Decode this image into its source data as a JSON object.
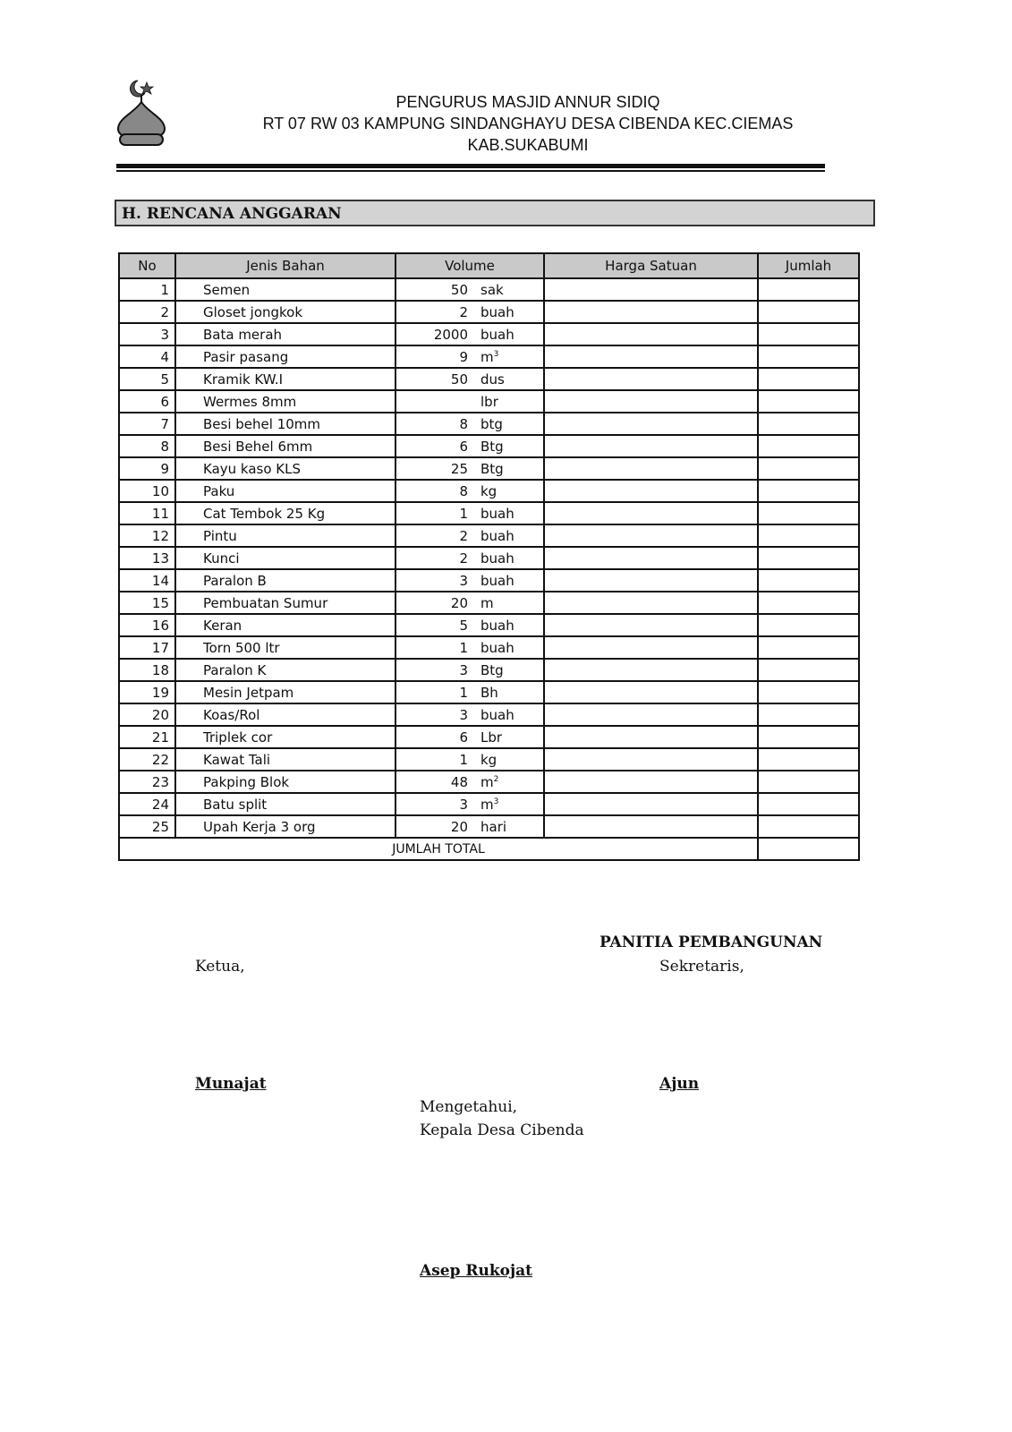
{
  "header": {
    "line1": "PENGURUS MASJID ANNUR SIDIQ",
    "line2": "RT 07 RW 03 KAMPUNG SINDANGHAYU DESA CIBENDA KEC.CIEMAS",
    "line3": "KAB.SUKABUMI"
  },
  "section_title": "H. RENCANA ANGGARAN",
  "table": {
    "columns": [
      "No",
      "Jenis Bahan",
      "Volume",
      "Harga Satuan",
      "Jumlah"
    ],
    "rows": [
      {
        "no": "1",
        "item": "Semen",
        "qty": "50",
        "unit": "sak"
      },
      {
        "no": "2",
        "item": "Gloset jongkok",
        "qty": "2",
        "unit": "buah"
      },
      {
        "no": "3",
        "item": "Bata merah",
        "qty": "2000",
        "unit": "buah"
      },
      {
        "no": "4",
        "item": "Pasir pasang",
        "qty": "9",
        "unit": "m",
        "sup": "3"
      },
      {
        "no": "5",
        "item": "Kramik KW.I",
        "qty": "50",
        "unit": "dus"
      },
      {
        "no": "6",
        "item": "Wermes 8mm",
        "qty": "",
        "unit": "lbr"
      },
      {
        "no": "7",
        "item": "Besi behel 10mm",
        "qty": "8",
        "unit": "btg"
      },
      {
        "no": "8",
        "item": "Besi Behel 6mm",
        "qty": "6",
        "unit": "Btg"
      },
      {
        "no": "9",
        "item": "Kayu kaso KLS",
        "qty": "25",
        "unit": "Btg"
      },
      {
        "no": "10",
        "item": "Paku",
        "qty": "8",
        "unit": "kg"
      },
      {
        "no": "11",
        "item": "Cat Tembok 25 Kg",
        "qty": "1",
        "unit": "buah"
      },
      {
        "no": "12",
        "item": "Pintu",
        "qty": "2",
        "unit": "buah"
      },
      {
        "no": "13",
        "item": "Kunci",
        "qty": "2",
        "unit": "buah"
      },
      {
        "no": "14",
        "item": "Paralon B",
        "qty": "3",
        "unit": "buah"
      },
      {
        "no": "15",
        "item": "Pembuatan Sumur",
        "qty": "20",
        "unit": "m"
      },
      {
        "no": "16",
        "item": "Keran",
        "qty": "5",
        "unit": "buah"
      },
      {
        "no": "17",
        "item": "Torn 500 ltr",
        "qty": "1",
        "unit": "buah"
      },
      {
        "no": "18",
        "item": "Paralon K",
        "qty": "3",
        "unit": "Btg"
      },
      {
        "no": "19",
        "item": "Mesin Jetpam",
        "qty": "1",
        "unit": "Bh"
      },
      {
        "no": "20",
        "item": "Koas/Rol",
        "qty": "3",
        "unit": "buah"
      },
      {
        "no": "21",
        "item": "Triplek cor",
        "qty": "6",
        "unit": "Lbr"
      },
      {
        "no": "22",
        "item": "Kawat Tali",
        "qty": "1",
        "unit": "kg"
      },
      {
        "no": "23",
        "item": "Pakping Blok",
        "qty": "48",
        "unit": "m",
        "sup": "2"
      },
      {
        "no": "24",
        "item": "Batu split",
        "qty": "3",
        "unit": "m",
        "sup": "3"
      },
      {
        "no": "25",
        "item": "Upah Kerja 3 org",
        "qty": "20",
        "unit": "hari"
      }
    ],
    "total_label": "JUMLAH TOTAL"
  },
  "signatures": {
    "committee": "PANITIA PEMBANGUNAN",
    "chair_title": "Ketua,",
    "secretary_title": "Sekretaris,",
    "chair_name": "Munajat",
    "secretary_name": "Ajun",
    "ack": "Mengetahui,",
    "village_head_title": "Kepala Desa Cibenda",
    "village_head_name": "Asep Rukojat"
  }
}
